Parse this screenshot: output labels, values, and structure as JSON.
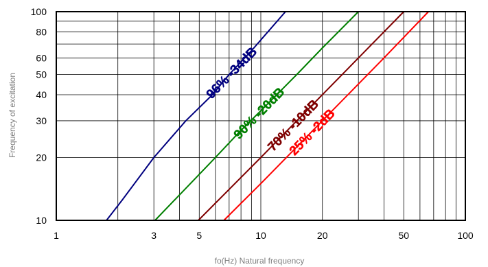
{
  "chart_data": {
    "type": "line",
    "xlabel": "fo(Hz) Natural frequency",
    "ylabel": "Frequency of excitation",
    "x_scale": "log",
    "y_scale": "log",
    "xlim": [
      1,
      100
    ],
    "ylim": [
      10,
      100
    ],
    "x_ticks": [
      1,
      3,
      5,
      10,
      20,
      50,
      100
    ],
    "y_ticks": [
      10,
      20,
      30,
      40,
      50,
      60,
      80,
      100
    ],
    "x_grid": [
      1,
      2,
      3,
      4,
      5,
      6,
      7,
      8,
      9,
      10,
      20,
      30,
      40,
      50,
      60,
      70,
      80,
      90,
      100
    ],
    "y_grid": [
      10,
      20,
      30,
      40,
      50,
      60,
      70,
      80,
      90,
      100
    ],
    "grid": true,
    "series": [
      {
        "label": "96% -34dB",
        "color": "#00007f",
        "points": [
          [
            1.76,
            10
          ],
          [
            2.1,
            12.5
          ],
          [
            3,
            20
          ],
          [
            4.3,
            30
          ],
          [
            5.8,
            40
          ],
          [
            7,
            50
          ],
          [
            9,
            65
          ],
          [
            13.2,
            100
          ]
        ]
      },
      {
        "label": "90% -20dB",
        "color": "#007f00",
        "points": [
          [
            3.04,
            10
          ],
          [
            6,
            20
          ],
          [
            8,
            27
          ],
          [
            10,
            33.5
          ],
          [
            15,
            50
          ],
          [
            20,
            67
          ],
          [
            30,
            100
          ]
        ]
      },
      {
        "label": "70% -10dB",
        "color": "#7f0000",
        "points": [
          [
            4.95,
            10
          ],
          [
            10,
            20
          ],
          [
            20,
            40
          ],
          [
            30,
            60
          ],
          [
            50,
            100
          ]
        ]
      },
      {
        "label": "25% -2dB",
        "color": "#ff0000",
        "points": [
          [
            6.6,
            10
          ],
          [
            10,
            15
          ],
          [
            20,
            30
          ],
          [
            30,
            45
          ],
          [
            40,
            60
          ],
          [
            66,
            100
          ]
        ]
      }
    ]
  }
}
